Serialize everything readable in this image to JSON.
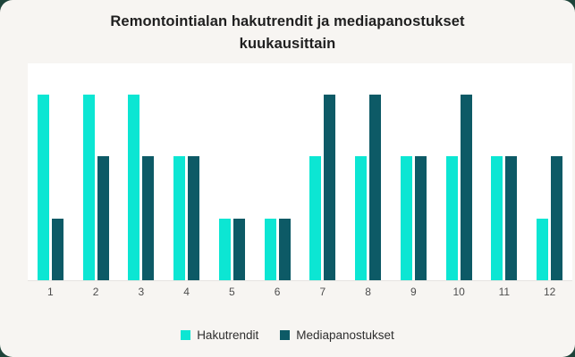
{
  "chart_data": {
    "type": "bar",
    "title": "Remontointialan hakutrendit ja mediapanostukset kuukausittain",
    "categories": [
      "1",
      "2",
      "3",
      "4",
      "5",
      "6",
      "7",
      "8",
      "9",
      "10",
      "11",
      "12"
    ],
    "series": [
      {
        "name": "Hakutrendit",
        "color": "#0ce6d3",
        "values": [
          3,
          3,
          3,
          2,
          1,
          1,
          2,
          2,
          2,
          2,
          2,
          1
        ]
      },
      {
        "name": "Mediapanostukset",
        "color": "#0d5a66",
        "values": [
          1,
          2,
          2,
          2,
          1,
          1,
          3,
          3,
          2,
          3,
          2,
          2
        ]
      }
    ],
    "xlabel": "",
    "ylabel": "",
    "ylim": [
      0,
      3.5
    ],
    "grid": false,
    "legend_position": "bottom",
    "plot_background": "#ffffff",
    "card_background": "#f7f5f2",
    "axis_line_color": "#e6e4e1"
  }
}
